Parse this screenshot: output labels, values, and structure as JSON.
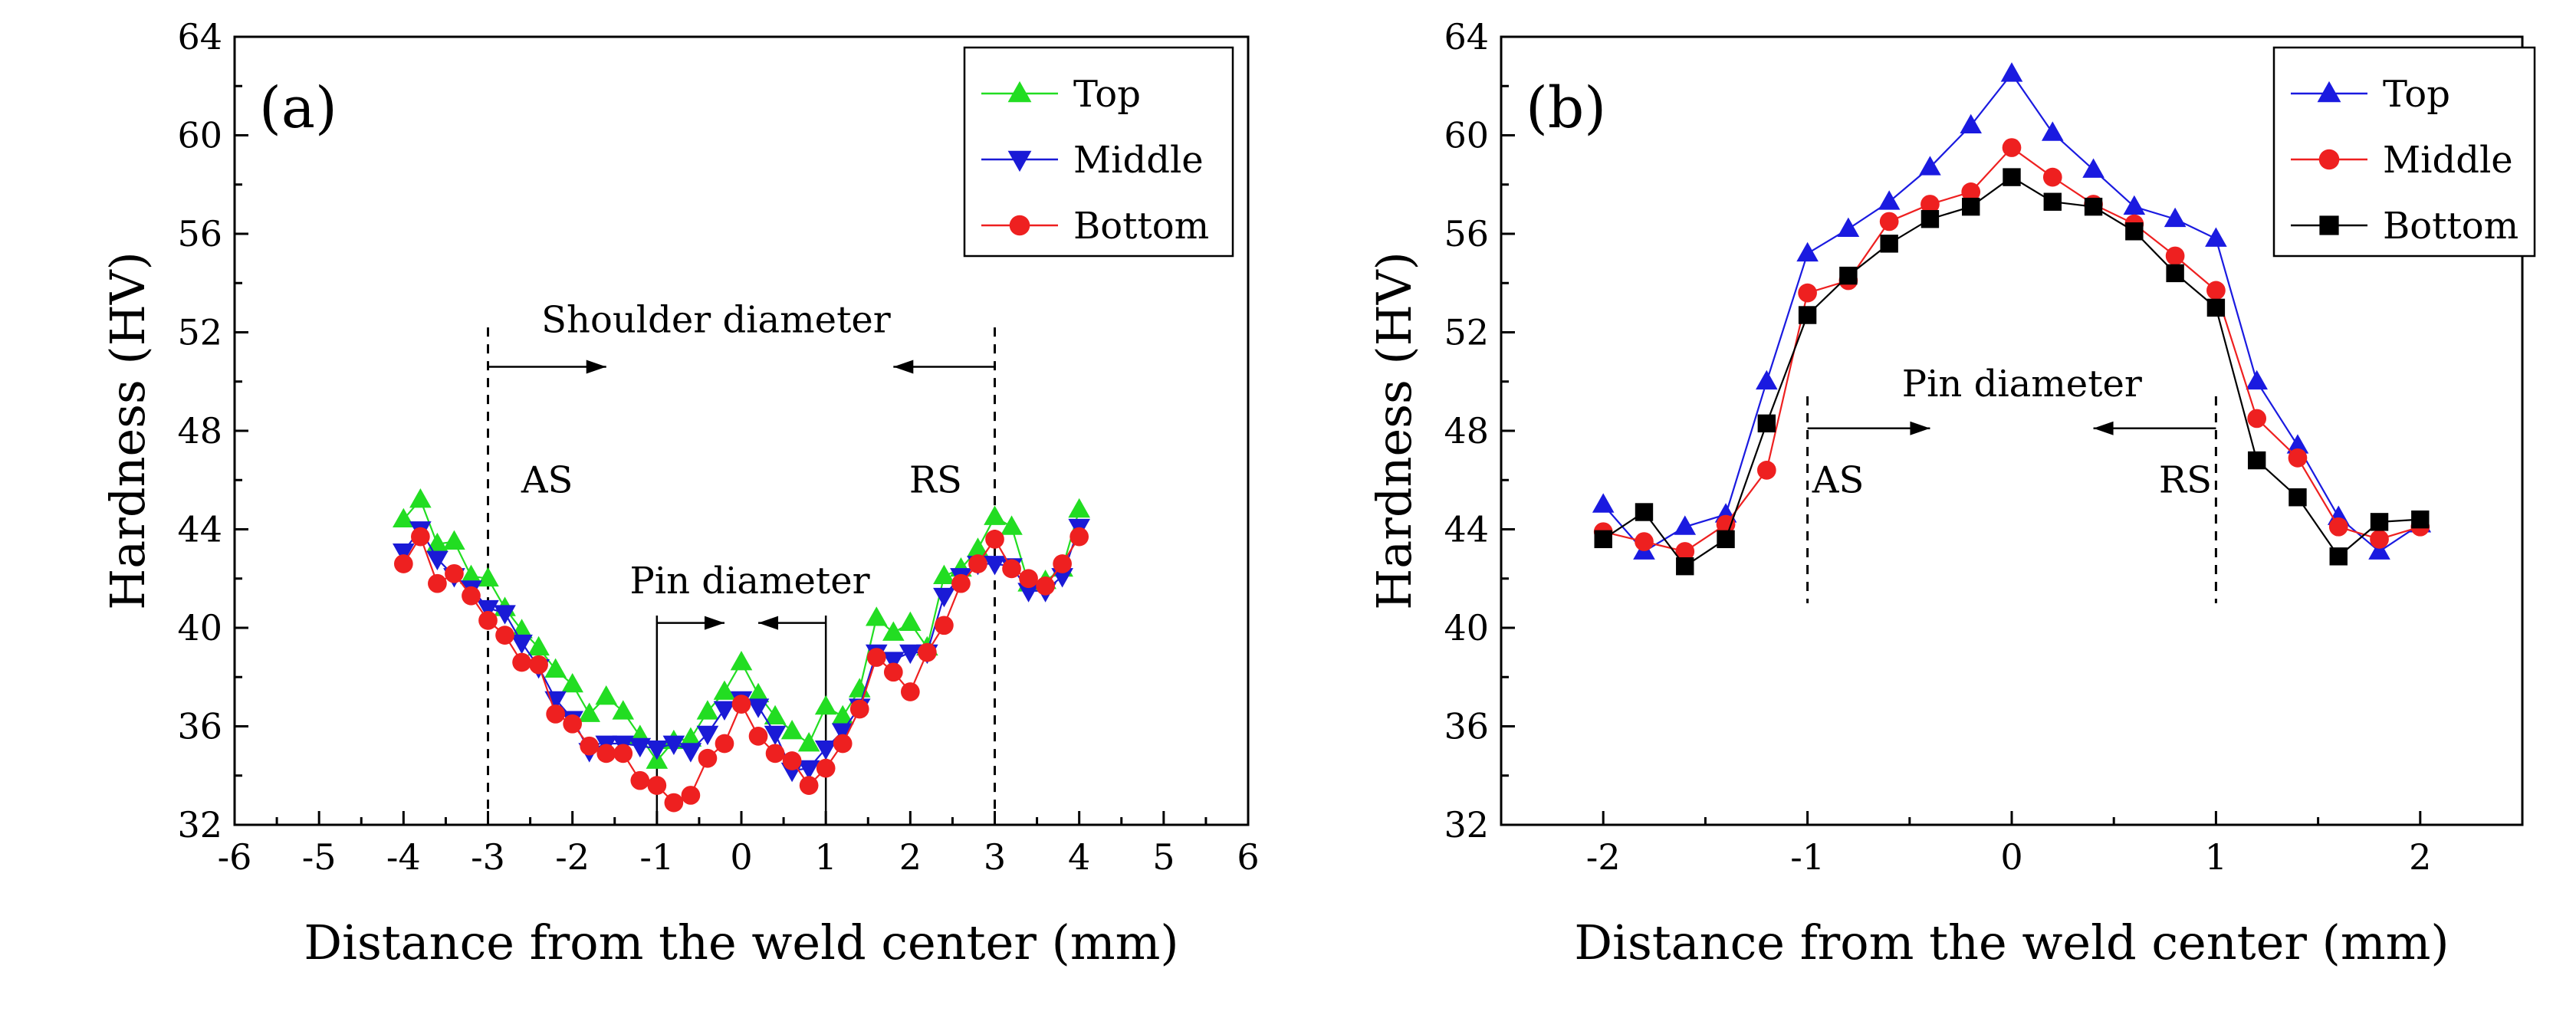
{
  "chart_data": [
    {
      "type": "line",
      "panel_label": "(a)",
      "xlabel": "Distance from the weld center (mm)",
      "ylabel": "Hardness (HV)",
      "xlim": [
        -6,
        6
      ],
      "ylim": [
        32,
        64
      ],
      "xticks": [
        -6,
        -5,
        -4,
        -3,
        -2,
        -1,
        0,
        1,
        2,
        3,
        4,
        5,
        6
      ],
      "yticks": [
        32,
        36,
        40,
        44,
        48,
        52,
        56,
        60,
        64
      ],
      "legend": [
        "Top",
        "Middle",
        "Bottom"
      ],
      "legend_position": "top-right",
      "annotations": {
        "shoulder": "Shoulder  diameter",
        "pin": "Pin diameter",
        "as": "AS",
        "rs": "RS"
      },
      "series": [
        {
          "name": "Top",
          "color": "#22dd22",
          "marker": "triangle-up",
          "x": [
            -4.0,
            -3.8,
            -3.6,
            -3.4,
            -3.2,
            -3.0,
            -2.8,
            -2.6,
            -2.4,
            -2.2,
            -2.0,
            -1.8,
            -1.6,
            -1.4,
            -1.2,
            -1.0,
            -0.8,
            -0.6,
            -0.4,
            -0.2,
            0.0,
            0.2,
            0.4,
            0.6,
            0.8,
            1.0,
            1.2,
            1.4,
            1.6,
            1.8,
            2.0,
            2.2,
            2.4,
            2.6,
            2.8,
            3.0,
            3.2,
            3.4,
            3.6,
            3.8,
            4.0
          ],
          "values": [
            44.4,
            45.2,
            43.4,
            43.5,
            42.1,
            42.0,
            40.8,
            39.9,
            39.2,
            38.3,
            37.7,
            36.5,
            37.2,
            36.6,
            35.6,
            34.6,
            35.4,
            35.5,
            36.6,
            37.4,
            38.6,
            37.3,
            36.4,
            35.8,
            35.3,
            36.8,
            36.4,
            37.5,
            40.4,
            39.8,
            40.2,
            39.2,
            42.1,
            42.4,
            43.2,
            44.5,
            44.1,
            41.8,
            41.9,
            42.4,
            44.8
          ]
        },
        {
          "name": "Middle",
          "color": "#1a1ad6",
          "marker": "triangle-down",
          "x": [
            -4.0,
            -3.8,
            -3.6,
            -3.4,
            -3.2,
            -3.0,
            -2.8,
            -2.6,
            -2.4,
            -2.2,
            -2.0,
            -1.8,
            -1.6,
            -1.4,
            -1.2,
            -1.0,
            -0.8,
            -0.6,
            -0.4,
            -0.2,
            0.0,
            0.2,
            0.4,
            0.6,
            0.8,
            1.0,
            1.2,
            1.4,
            1.6,
            1.8,
            2.0,
            2.2,
            2.4,
            2.6,
            2.8,
            3.0,
            3.2,
            3.4,
            3.6,
            3.8,
            4.0
          ],
          "values": [
            43.1,
            44.0,
            42.8,
            42.1,
            41.6,
            40.8,
            40.6,
            39.4,
            38.4,
            37.1,
            36.3,
            35.0,
            35.3,
            35.3,
            35.2,
            35.1,
            35.3,
            35.0,
            35.7,
            36.7,
            37.1,
            36.8,
            35.7,
            34.2,
            34.3,
            35.1,
            35.8,
            36.8,
            39.0,
            38.7,
            39.0,
            39.0,
            41.3,
            42.1,
            42.6,
            42.6,
            42.5,
            41.5,
            41.5,
            42.1,
            44.1
          ]
        },
        {
          "name": "Bottom",
          "color": "#ee2020",
          "marker": "circle",
          "x": [
            -4.0,
            -3.8,
            -3.6,
            -3.4,
            -3.2,
            -3.0,
            -2.8,
            -2.6,
            -2.4,
            -2.2,
            -2.0,
            -1.8,
            -1.6,
            -1.4,
            -1.2,
            -1.0,
            -0.8,
            -0.6,
            -0.4,
            -0.2,
            0.0,
            0.2,
            0.4,
            0.6,
            0.8,
            1.0,
            1.2,
            1.4,
            1.6,
            1.8,
            2.0,
            2.2,
            2.4,
            2.6,
            2.8,
            3.0,
            3.2,
            3.4,
            3.6,
            3.8,
            4.0
          ],
          "values": [
            42.6,
            43.7,
            41.8,
            42.2,
            41.3,
            40.3,
            39.7,
            38.6,
            38.5,
            36.5,
            36.1,
            35.2,
            34.9,
            34.9,
            33.8,
            33.6,
            32.9,
            33.2,
            34.7,
            35.3,
            36.9,
            35.6,
            34.9,
            34.6,
            33.6,
            34.3,
            35.3,
            36.7,
            38.8,
            38.2,
            37.4,
            39.0,
            40.1,
            41.8,
            42.6,
            43.6,
            42.4,
            42.0,
            41.7,
            42.6,
            43.7
          ]
        }
      ]
    },
    {
      "type": "line",
      "panel_label": "(b)",
      "xlabel": "Distance from the weld center (mm)",
      "ylabel": "Hardness (HV)",
      "xlim": [
        -2.5,
        2.5
      ],
      "ylim": [
        32,
        64
      ],
      "xticks": [
        -2,
        -1,
        0,
        1,
        2
      ],
      "yticks": [
        32,
        36,
        40,
        44,
        48,
        52,
        56,
        60,
        64
      ],
      "legend": [
        "Top",
        "Middle",
        "Bottom"
      ],
      "legend_position": "top-right",
      "annotations": {
        "pin": "Pin diameter",
        "as": "AS",
        "rs": "RS"
      },
      "series": [
        {
          "name": "Top",
          "color": "#1a1ae0",
          "marker": "triangle-up",
          "x": [
            -2.0,
            -1.8,
            -1.6,
            -1.4,
            -1.2,
            -1.0,
            -0.8,
            -0.6,
            -0.4,
            -0.2,
            0.0,
            0.2,
            0.4,
            0.6,
            0.8,
            1.0,
            1.2,
            1.4,
            1.6,
            1.8,
            2.0
          ],
          "values": [
            45.0,
            43.1,
            44.1,
            44.6,
            50.0,
            55.2,
            56.2,
            57.3,
            58.7,
            60.4,
            62.5,
            60.1,
            58.6,
            57.1,
            56.6,
            55.8,
            50.0,
            47.4,
            44.5,
            43.1,
            44.2
          ]
        },
        {
          "name": "Middle",
          "color": "#ee2020",
          "marker": "circle",
          "x": [
            -2.0,
            -1.8,
            -1.6,
            -1.4,
            -1.2,
            -1.0,
            -0.8,
            -0.6,
            -0.4,
            -0.2,
            0.0,
            0.2,
            0.4,
            0.6,
            0.8,
            1.0,
            1.2,
            1.4,
            1.6,
            1.8,
            2.0
          ],
          "values": [
            43.9,
            43.5,
            43.1,
            44.2,
            46.4,
            53.6,
            54.1,
            56.5,
            57.2,
            57.7,
            59.5,
            58.3,
            57.2,
            56.4,
            55.1,
            53.7,
            48.5,
            46.9,
            44.1,
            43.6,
            44.1
          ]
        },
        {
          "name": "Bottom",
          "color": "#000000",
          "marker": "square",
          "x": [
            -2.0,
            -1.8,
            -1.6,
            -1.4,
            -1.2,
            -1.0,
            -0.8,
            -0.6,
            -0.4,
            -0.2,
            0.0,
            0.2,
            0.4,
            0.6,
            0.8,
            1.0,
            1.2,
            1.4,
            1.6,
            1.8,
            2.0
          ],
          "values": [
            43.6,
            44.7,
            42.5,
            43.6,
            48.3,
            52.7,
            54.3,
            55.6,
            56.6,
            57.1,
            58.3,
            57.3,
            57.1,
            56.1,
            54.4,
            53.0,
            46.8,
            45.3,
            42.9,
            44.3,
            44.4
          ]
        }
      ]
    }
  ]
}
